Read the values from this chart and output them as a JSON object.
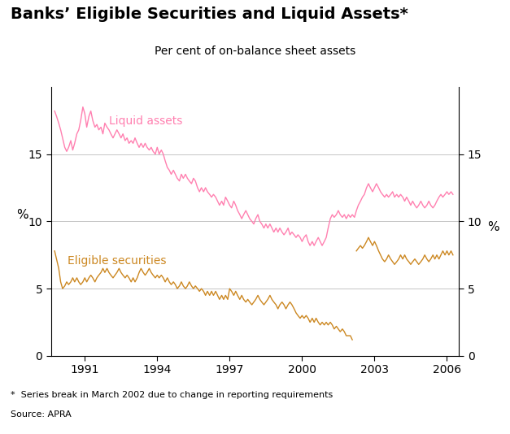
{
  "title": "Banks’ Eligible Securities and Liquid Assets*",
  "subtitle": "Per cent of on-balance sheet assets",
  "footnote": "*  Series break in March 2002 due to change in reporting requirements",
  "source": "Source: APRA",
  "ylabel_left": "%",
  "ylabel_right": "%",
  "ylim": [
    0,
    20
  ],
  "yticks": [
    0,
    5,
    10,
    15
  ],
  "xlim_start": 1989.6,
  "xlim_end": 2006.5,
  "xtick_years": [
    1991,
    1994,
    1997,
    2000,
    2003,
    2006
  ],
  "liquid_color": "#FF80B0",
  "eligible_color": "#CC8822",
  "liquid_label": "Liquid assets",
  "eligible_label": "Eligible securities",
  "grid_color": "#BBBBBB",
  "liquid_data": [
    [
      1989.75,
      18.2
    ],
    [
      1989.83,
      17.8
    ],
    [
      1989.92,
      17.3
    ],
    [
      1990.0,
      16.8
    ],
    [
      1990.08,
      16.2
    ],
    [
      1990.17,
      15.5
    ],
    [
      1990.25,
      15.2
    ],
    [
      1990.33,
      15.5
    ],
    [
      1990.42,
      16.0
    ],
    [
      1990.5,
      15.3
    ],
    [
      1990.58,
      15.8
    ],
    [
      1990.67,
      16.5
    ],
    [
      1990.75,
      16.8
    ],
    [
      1990.83,
      17.5
    ],
    [
      1990.92,
      18.5
    ],
    [
      1991.0,
      18.0
    ],
    [
      1991.08,
      17.0
    ],
    [
      1991.17,
      17.8
    ],
    [
      1991.25,
      18.2
    ],
    [
      1991.33,
      17.5
    ],
    [
      1991.42,
      17.0
    ],
    [
      1991.5,
      17.2
    ],
    [
      1991.58,
      16.8
    ],
    [
      1991.67,
      17.0
    ],
    [
      1991.75,
      16.5
    ],
    [
      1991.83,
      17.3
    ],
    [
      1991.92,
      17.0
    ],
    [
      1992.0,
      16.8
    ],
    [
      1992.08,
      16.5
    ],
    [
      1992.17,
      16.2
    ],
    [
      1992.25,
      16.5
    ],
    [
      1992.33,
      16.8
    ],
    [
      1992.42,
      16.5
    ],
    [
      1992.5,
      16.2
    ],
    [
      1992.58,
      16.5
    ],
    [
      1992.67,
      16.0
    ],
    [
      1992.75,
      16.2
    ],
    [
      1992.83,
      15.8
    ],
    [
      1992.92,
      16.0
    ],
    [
      1993.0,
      15.8
    ],
    [
      1993.08,
      16.2
    ],
    [
      1993.17,
      15.8
    ],
    [
      1993.25,
      15.5
    ],
    [
      1993.33,
      15.8
    ],
    [
      1993.42,
      15.5
    ],
    [
      1993.5,
      15.8
    ],
    [
      1993.58,
      15.5
    ],
    [
      1993.67,
      15.3
    ],
    [
      1993.75,
      15.5
    ],
    [
      1993.83,
      15.2
    ],
    [
      1993.92,
      15.0
    ],
    [
      1994.0,
      15.5
    ],
    [
      1994.08,
      15.0
    ],
    [
      1994.17,
      15.3
    ],
    [
      1994.25,
      15.0
    ],
    [
      1994.33,
      14.5
    ],
    [
      1994.42,
      14.0
    ],
    [
      1994.5,
      13.8
    ],
    [
      1994.58,
      13.5
    ],
    [
      1994.67,
      13.8
    ],
    [
      1994.75,
      13.5
    ],
    [
      1994.83,
      13.2
    ],
    [
      1994.92,
      13.0
    ],
    [
      1995.0,
      13.5
    ],
    [
      1995.08,
      13.2
    ],
    [
      1995.17,
      13.5
    ],
    [
      1995.25,
      13.2
    ],
    [
      1995.33,
      13.0
    ],
    [
      1995.42,
      12.8
    ],
    [
      1995.5,
      13.2
    ],
    [
      1995.58,
      13.0
    ],
    [
      1995.67,
      12.5
    ],
    [
      1995.75,
      12.2
    ],
    [
      1995.83,
      12.5
    ],
    [
      1995.92,
      12.2
    ],
    [
      1996.0,
      12.5
    ],
    [
      1996.08,
      12.2
    ],
    [
      1996.17,
      12.0
    ],
    [
      1996.25,
      11.8
    ],
    [
      1996.33,
      12.0
    ],
    [
      1996.42,
      11.8
    ],
    [
      1996.5,
      11.5
    ],
    [
      1996.58,
      11.2
    ],
    [
      1996.67,
      11.5
    ],
    [
      1996.75,
      11.2
    ],
    [
      1996.83,
      11.8
    ],
    [
      1996.92,
      11.5
    ],
    [
      1997.0,
      11.2
    ],
    [
      1997.08,
      11.0
    ],
    [
      1997.17,
      11.5
    ],
    [
      1997.25,
      11.2
    ],
    [
      1997.33,
      10.8
    ],
    [
      1997.42,
      10.5
    ],
    [
      1997.5,
      10.2
    ],
    [
      1997.58,
      10.5
    ],
    [
      1997.67,
      10.8
    ],
    [
      1997.75,
      10.5
    ],
    [
      1997.83,
      10.2
    ],
    [
      1997.92,
      10.0
    ],
    [
      1998.0,
      9.8
    ],
    [
      1998.08,
      10.2
    ],
    [
      1998.17,
      10.5
    ],
    [
      1998.25,
      10.0
    ],
    [
      1998.33,
      9.8
    ],
    [
      1998.42,
      9.5
    ],
    [
      1998.5,
      9.8
    ],
    [
      1998.58,
      9.5
    ],
    [
      1998.67,
      9.8
    ],
    [
      1998.75,
      9.5
    ],
    [
      1998.83,
      9.2
    ],
    [
      1998.92,
      9.5
    ],
    [
      1999.0,
      9.2
    ],
    [
      1999.08,
      9.5
    ],
    [
      1999.17,
      9.2
    ],
    [
      1999.25,
      9.0
    ],
    [
      1999.33,
      9.2
    ],
    [
      1999.42,
      9.5
    ],
    [
      1999.5,
      9.0
    ],
    [
      1999.58,
      9.2
    ],
    [
      1999.67,
      9.0
    ],
    [
      1999.75,
      8.8
    ],
    [
      1999.83,
      9.0
    ],
    [
      1999.92,
      8.8
    ],
    [
      2000.0,
      8.5
    ],
    [
      2000.08,
      8.8
    ],
    [
      2000.17,
      9.0
    ],
    [
      2000.25,
      8.5
    ],
    [
      2000.33,
      8.2
    ],
    [
      2000.42,
      8.5
    ],
    [
      2000.5,
      8.2
    ],
    [
      2000.58,
      8.5
    ],
    [
      2000.67,
      8.8
    ],
    [
      2000.75,
      8.5
    ],
    [
      2000.83,
      8.2
    ],
    [
      2000.92,
      8.5
    ],
    [
      2001.0,
      8.8
    ],
    [
      2001.08,
      9.5
    ],
    [
      2001.17,
      10.2
    ],
    [
      2001.25,
      10.5
    ],
    [
      2001.33,
      10.3
    ],
    [
      2001.42,
      10.5
    ],
    [
      2001.5,
      10.8
    ],
    [
      2001.58,
      10.5
    ],
    [
      2001.67,
      10.3
    ],
    [
      2001.75,
      10.5
    ],
    [
      2001.83,
      10.2
    ],
    [
      2001.92,
      10.5
    ],
    [
      2002.0,
      10.3
    ],
    [
      2002.08,
      10.5
    ],
    [
      2002.17,
      10.3
    ],
    [
      2002.25,
      10.8
    ],
    [
      2002.33,
      11.2
    ],
    [
      2002.42,
      11.5
    ],
    [
      2002.5,
      11.8
    ],
    [
      2002.58,
      12.0
    ],
    [
      2002.67,
      12.5
    ],
    [
      2002.75,
      12.8
    ],
    [
      2002.83,
      12.5
    ],
    [
      2002.92,
      12.2
    ],
    [
      2003.0,
      12.5
    ],
    [
      2003.08,
      12.8
    ],
    [
      2003.17,
      12.5
    ],
    [
      2003.25,
      12.2
    ],
    [
      2003.33,
      12.0
    ],
    [
      2003.42,
      11.8
    ],
    [
      2003.5,
      12.0
    ],
    [
      2003.58,
      11.8
    ],
    [
      2003.67,
      12.0
    ],
    [
      2003.75,
      12.2
    ],
    [
      2003.83,
      11.8
    ],
    [
      2003.92,
      12.0
    ],
    [
      2004.0,
      11.8
    ],
    [
      2004.08,
      12.0
    ],
    [
      2004.17,
      11.8
    ],
    [
      2004.25,
      11.5
    ],
    [
      2004.33,
      11.8
    ],
    [
      2004.42,
      11.5
    ],
    [
      2004.5,
      11.2
    ],
    [
      2004.58,
      11.5
    ],
    [
      2004.67,
      11.2
    ],
    [
      2004.75,
      11.0
    ],
    [
      2004.83,
      11.2
    ],
    [
      2004.92,
      11.5
    ],
    [
      2005.0,
      11.2
    ],
    [
      2005.08,
      11.0
    ],
    [
      2005.17,
      11.2
    ],
    [
      2005.25,
      11.5
    ],
    [
      2005.33,
      11.2
    ],
    [
      2005.42,
      11.0
    ],
    [
      2005.5,
      11.2
    ],
    [
      2005.58,
      11.5
    ],
    [
      2005.67,
      11.8
    ],
    [
      2005.75,
      12.0
    ],
    [
      2005.83,
      11.8
    ],
    [
      2005.92,
      12.0
    ],
    [
      2006.0,
      12.2
    ],
    [
      2006.08,
      12.0
    ],
    [
      2006.17,
      12.2
    ],
    [
      2006.25,
      12.0
    ]
  ],
  "eligible_pre_break": [
    [
      1989.75,
      7.8
    ],
    [
      1989.83,
      7.2
    ],
    [
      1989.92,
      6.5
    ],
    [
      1990.0,
      5.5
    ],
    [
      1990.08,
      5.0
    ],
    [
      1990.17,
      5.2
    ],
    [
      1990.25,
      5.5
    ],
    [
      1990.33,
      5.3
    ],
    [
      1990.42,
      5.5
    ],
    [
      1990.5,
      5.8
    ],
    [
      1990.58,
      5.5
    ],
    [
      1990.67,
      5.8
    ],
    [
      1990.75,
      5.5
    ],
    [
      1990.83,
      5.3
    ],
    [
      1990.92,
      5.5
    ],
    [
      1991.0,
      5.8
    ],
    [
      1991.08,
      5.5
    ],
    [
      1991.17,
      5.8
    ],
    [
      1991.25,
      6.0
    ],
    [
      1991.33,
      5.8
    ],
    [
      1991.42,
      5.5
    ],
    [
      1991.5,
      5.8
    ],
    [
      1991.58,
      6.0
    ],
    [
      1991.67,
      6.2
    ],
    [
      1991.75,
      6.5
    ],
    [
      1991.83,
      6.2
    ],
    [
      1991.92,
      6.5
    ],
    [
      1992.0,
      6.2
    ],
    [
      1992.08,
      6.0
    ],
    [
      1992.17,
      5.8
    ],
    [
      1992.25,
      6.0
    ],
    [
      1992.33,
      6.2
    ],
    [
      1992.42,
      6.5
    ],
    [
      1992.5,
      6.2
    ],
    [
      1992.58,
      6.0
    ],
    [
      1992.67,
      5.8
    ],
    [
      1992.75,
      6.0
    ],
    [
      1992.83,
      5.8
    ],
    [
      1992.92,
      5.5
    ],
    [
      1993.0,
      5.8
    ],
    [
      1993.08,
      5.5
    ],
    [
      1993.17,
      5.8
    ],
    [
      1993.25,
      6.2
    ],
    [
      1993.33,
      6.5
    ],
    [
      1993.42,
      6.2
    ],
    [
      1993.5,
      6.0
    ],
    [
      1993.58,
      6.2
    ],
    [
      1993.67,
      6.5
    ],
    [
      1993.75,
      6.2
    ],
    [
      1993.83,
      6.0
    ],
    [
      1993.92,
      5.8
    ],
    [
      1994.0,
      6.0
    ],
    [
      1994.08,
      5.8
    ],
    [
      1994.17,
      6.0
    ],
    [
      1994.25,
      5.8
    ],
    [
      1994.33,
      5.5
    ],
    [
      1994.42,
      5.8
    ],
    [
      1994.5,
      5.5
    ],
    [
      1994.58,
      5.3
    ],
    [
      1994.67,
      5.5
    ],
    [
      1994.75,
      5.3
    ],
    [
      1994.83,
      5.0
    ],
    [
      1994.92,
      5.2
    ],
    [
      1995.0,
      5.5
    ],
    [
      1995.08,
      5.2
    ],
    [
      1995.17,
      5.0
    ],
    [
      1995.25,
      5.2
    ],
    [
      1995.33,
      5.5
    ],
    [
      1995.42,
      5.2
    ],
    [
      1995.5,
      5.0
    ],
    [
      1995.58,
      5.2
    ],
    [
      1995.67,
      5.0
    ],
    [
      1995.75,
      4.8
    ],
    [
      1995.83,
      5.0
    ],
    [
      1995.92,
      4.8
    ],
    [
      1996.0,
      4.5
    ],
    [
      1996.08,
      4.8
    ],
    [
      1996.17,
      4.5
    ],
    [
      1996.25,
      4.8
    ],
    [
      1996.33,
      4.5
    ],
    [
      1996.42,
      4.8
    ],
    [
      1996.5,
      4.5
    ],
    [
      1996.58,
      4.2
    ],
    [
      1996.67,
      4.5
    ],
    [
      1996.75,
      4.2
    ],
    [
      1996.83,
      4.5
    ],
    [
      1996.92,
      4.2
    ],
    [
      1997.0,
      5.0
    ],
    [
      1997.08,
      4.8
    ],
    [
      1997.17,
      4.5
    ],
    [
      1997.25,
      4.8
    ],
    [
      1997.33,
      4.5
    ],
    [
      1997.42,
      4.2
    ],
    [
      1997.5,
      4.5
    ],
    [
      1997.58,
      4.2
    ],
    [
      1997.67,
      4.0
    ],
    [
      1997.75,
      4.2
    ],
    [
      1997.83,
      4.0
    ],
    [
      1997.92,
      3.8
    ],
    [
      1998.0,
      4.0
    ],
    [
      1998.08,
      4.2
    ],
    [
      1998.17,
      4.5
    ],
    [
      1998.25,
      4.2
    ],
    [
      1998.33,
      4.0
    ],
    [
      1998.42,
      3.8
    ],
    [
      1998.5,
      4.0
    ],
    [
      1998.58,
      4.2
    ],
    [
      1998.67,
      4.5
    ],
    [
      1998.75,
      4.2
    ],
    [
      1998.83,
      4.0
    ],
    [
      1998.92,
      3.8
    ],
    [
      1999.0,
      3.5
    ],
    [
      1999.08,
      3.8
    ],
    [
      1999.17,
      4.0
    ],
    [
      1999.25,
      3.8
    ],
    [
      1999.33,
      3.5
    ],
    [
      1999.42,
      3.8
    ],
    [
      1999.5,
      4.0
    ],
    [
      1999.58,
      3.8
    ],
    [
      1999.67,
      3.5
    ],
    [
      1999.75,
      3.2
    ],
    [
      1999.83,
      3.0
    ],
    [
      1999.92,
      2.8
    ],
    [
      2000.0,
      3.0
    ],
    [
      2000.08,
      2.8
    ],
    [
      2000.17,
      3.0
    ],
    [
      2000.25,
      2.8
    ],
    [
      2000.33,
      2.5
    ],
    [
      2000.42,
      2.8
    ],
    [
      2000.5,
      2.5
    ],
    [
      2000.58,
      2.8
    ],
    [
      2000.67,
      2.5
    ],
    [
      2000.75,
      2.3
    ],
    [
      2000.83,
      2.5
    ],
    [
      2000.92,
      2.3
    ],
    [
      2001.0,
      2.5
    ],
    [
      2001.08,
      2.3
    ],
    [
      2001.17,
      2.5
    ],
    [
      2001.25,
      2.3
    ],
    [
      2001.33,
      2.0
    ],
    [
      2001.42,
      2.2
    ],
    [
      2001.5,
      2.0
    ],
    [
      2001.58,
      1.8
    ],
    [
      2001.67,
      2.0
    ],
    [
      2001.75,
      1.8
    ],
    [
      2001.83,
      1.5
    ],
    [
      2001.92,
      1.5
    ],
    [
      2002.0,
      1.5
    ],
    [
      2002.08,
      1.2
    ]
  ],
  "eligible_post_break": [
    [
      2002.25,
      7.8
    ],
    [
      2002.33,
      8.0
    ],
    [
      2002.42,
      8.2
    ],
    [
      2002.5,
      8.0
    ],
    [
      2002.58,
      8.2
    ],
    [
      2002.67,
      8.5
    ],
    [
      2002.75,
      8.8
    ],
    [
      2002.83,
      8.5
    ],
    [
      2002.92,
      8.2
    ],
    [
      2003.0,
      8.5
    ],
    [
      2003.08,
      8.2
    ],
    [
      2003.17,
      7.8
    ],
    [
      2003.25,
      7.5
    ],
    [
      2003.33,
      7.2
    ],
    [
      2003.42,
      7.0
    ],
    [
      2003.5,
      7.2
    ],
    [
      2003.58,
      7.5
    ],
    [
      2003.67,
      7.2
    ],
    [
      2003.75,
      7.0
    ],
    [
      2003.83,
      6.8
    ],
    [
      2003.92,
      7.0
    ],
    [
      2004.0,
      7.2
    ],
    [
      2004.08,
      7.5
    ],
    [
      2004.17,
      7.2
    ],
    [
      2004.25,
      7.5
    ],
    [
      2004.33,
      7.2
    ],
    [
      2004.42,
      7.0
    ],
    [
      2004.5,
      6.8
    ],
    [
      2004.58,
      7.0
    ],
    [
      2004.67,
      7.2
    ],
    [
      2004.75,
      7.0
    ],
    [
      2004.83,
      6.8
    ],
    [
      2004.92,
      7.0
    ],
    [
      2005.0,
      7.2
    ],
    [
      2005.08,
      7.5
    ],
    [
      2005.17,
      7.2
    ],
    [
      2005.25,
      7.0
    ],
    [
      2005.33,
      7.2
    ],
    [
      2005.42,
      7.5
    ],
    [
      2005.5,
      7.2
    ],
    [
      2005.58,
      7.5
    ],
    [
      2005.67,
      7.2
    ],
    [
      2005.75,
      7.5
    ],
    [
      2005.83,
      7.8
    ],
    [
      2005.92,
      7.5
    ],
    [
      2006.0,
      7.8
    ],
    [
      2006.08,
      7.5
    ],
    [
      2006.17,
      7.8
    ],
    [
      2006.25,
      7.5
    ]
  ]
}
